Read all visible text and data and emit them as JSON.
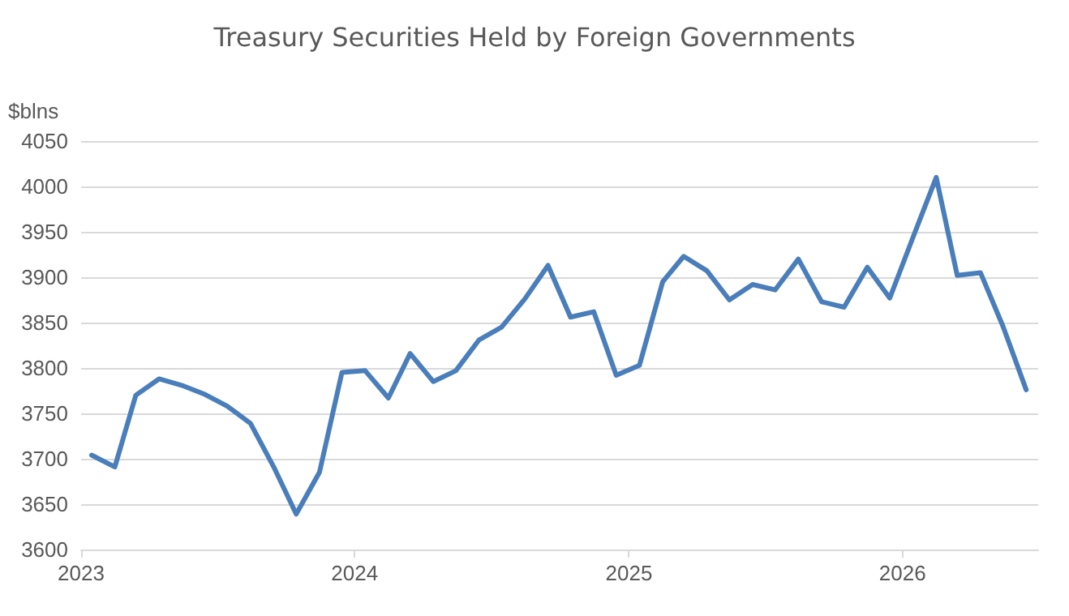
{
  "chart_data": {
    "type": "line",
    "title": "Treasury Securities Held by Foreign Governments",
    "ylabel": "$blns",
    "x": [
      "2023-01-15",
      "2023-02-15",
      "2023-03-15",
      "2023-04-15",
      "2023-05-15",
      "2023-06-15",
      "2023-07-15",
      "2023-08-15",
      "2023-09-15",
      "2023-10-15",
      "2023-11-15",
      "2023-12-15",
      "2024-01-15",
      "2024-02-15",
      "2024-03-15",
      "2024-04-15",
      "2024-05-15",
      "2024-06-15",
      "2024-07-15",
      "2024-08-15",
      "2024-09-15",
      "2024-10-15",
      "2024-11-15",
      "2024-12-15",
      "2025-01-15",
      "2025-02-15",
      "2025-03-15",
      "2025-04-15",
      "2025-05-15",
      "2025-06-15",
      "2025-07-15",
      "2025-08-15",
      "2025-09-15",
      "2025-10-15",
      "2025-11-15",
      "2025-12-15",
      "2026-01-15",
      "2026-02-15",
      "2026-03-15",
      "2026-04-15",
      "2026-05-15",
      "2026-06-15"
    ],
    "series": [
      {
        "color": "#4a7ebb",
        "values": [
          3704,
          3691,
          3770,
          3788,
          3781,
          3771,
          3758,
          3739,
          3691,
          3639,
          3685,
          3795,
          3797,
          3767,
          3816,
          3785,
          3797,
          3831,
          3845,
          3876,
          3913,
          3856,
          3862,
          3792,
          3803,
          3895,
          3923,
          3907,
          3875,
          3892,
          3886,
          3920,
          3873,
          3867,
          3911,
          3877,
          3944,
          4010,
          3902,
          3905,
          3846,
          3776
        ]
      }
    ],
    "xlim": [
      "2023",
      "2026-07"
    ],
    "xticks": [
      "2023",
      "2024",
      "2025",
      "2026"
    ],
    "ylim": [
      3600,
      4050
    ],
    "yticks": [
      3600,
      3650,
      3700,
      3750,
      3800,
      3850,
      3900,
      3950,
      4000,
      4050
    ],
    "grid": "y",
    "marker": "none",
    "line_style": "solid"
  }
}
